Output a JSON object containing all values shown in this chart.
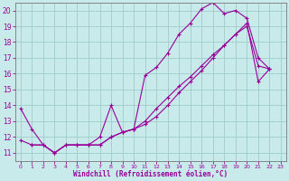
{
  "xlabel": "Windchill (Refroidissement éolien,°C)",
  "bg_color": "#c8eaea",
  "grid_color": "#a0cccc",
  "line_color": "#990099",
  "xlim": [
    -0.5,
    23.5
  ],
  "ylim": [
    10.5,
    20.5
  ],
  "xticks": [
    0,
    1,
    2,
    3,
    4,
    5,
    6,
    7,
    8,
    9,
    10,
    11,
    12,
    13,
    14,
    15,
    16,
    17,
    18,
    19,
    20,
    21,
    22,
    23
  ],
  "yticks": [
    11,
    12,
    13,
    14,
    15,
    16,
    17,
    18,
    19,
    20
  ],
  "line1_x": [
    0,
    1,
    2,
    3,
    4,
    5,
    6,
    7,
    8,
    9,
    10,
    11,
    12,
    13,
    14,
    15,
    16,
    17,
    18,
    19,
    20,
    21,
    22
  ],
  "line1_y": [
    13.8,
    12.5,
    11.5,
    11.0,
    11.5,
    11.5,
    11.5,
    12.0,
    14.0,
    12.3,
    12.5,
    15.9,
    16.4,
    17.3,
    18.5,
    19.2,
    20.1,
    20.5,
    19.8,
    20.0,
    19.5,
    17.0,
    16.3
  ],
  "line2_x": [
    1,
    2,
    3,
    4,
    5,
    6,
    7,
    8,
    9,
    10,
    11,
    12,
    13,
    14,
    15,
    16,
    17,
    18,
    19,
    20,
    21,
    22
  ],
  "line2_y": [
    11.5,
    11.5,
    11.0,
    11.5,
    11.5,
    11.5,
    11.5,
    12.0,
    12.3,
    12.5,
    13.0,
    13.8,
    14.5,
    15.2,
    15.8,
    16.5,
    17.2,
    17.8,
    18.5,
    19.0,
    16.5,
    16.3
  ],
  "line3_x": [
    0,
    1,
    2,
    3,
    4,
    5,
    6,
    7,
    8,
    9,
    10,
    11,
    12,
    13,
    14,
    15,
    16,
    17,
    18,
    19,
    20,
    21,
    22
  ],
  "line3_y": [
    11.8,
    11.5,
    11.5,
    11.0,
    11.5,
    11.5,
    11.5,
    11.5,
    12.0,
    12.3,
    12.5,
    12.8,
    13.3,
    14.0,
    14.8,
    15.5,
    16.2,
    17.0,
    17.8,
    18.5,
    19.2,
    15.5,
    16.3
  ]
}
